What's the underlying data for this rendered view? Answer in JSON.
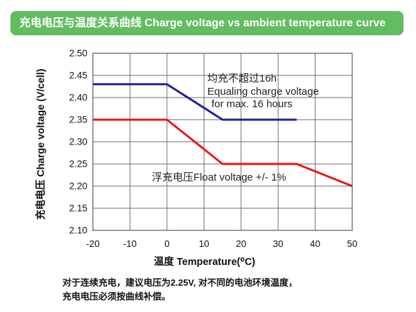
{
  "header": {
    "title": "充电电压与温度关系曲线 Charge voltage vs ambient temperature curve",
    "bg_color": "#63bc61",
    "text_color": "#ffffff"
  },
  "chart_data": {
    "type": "line",
    "title": "充电电压与温度关系曲线 Charge voltage vs ambient temperature curve",
    "xlabel": "温度 Temperature(⁰C)",
    "ylabel": "充电电压 Charge voltage (V/cell)",
    "xlim": [
      -20,
      50
    ],
    "ylim": [
      2.1,
      2.5
    ],
    "x_tick_values": [
      -20,
      -10,
      0,
      10,
      20,
      30,
      40,
      50
    ],
    "x_tick_labels": [
      "-20",
      "-10",
      "0",
      "10",
      "20",
      "30",
      "40",
      "50"
    ],
    "y_tick_values": [
      2.5,
      2.45,
      2.4,
      2.35,
      2.3,
      2.25,
      2.2,
      2.15,
      2.1
    ],
    "y_tick_labels": [
      "2.50",
      "2.45",
      "2.40",
      "2.35",
      "2.30",
      "2.25",
      "2.20",
      "2.15",
      "2.10"
    ],
    "grid": true,
    "grid_color": "#6e6e6e",
    "legend_position": "none",
    "series": [
      {
        "name": "equalizing-charge-voltage",
        "color": "#1f1f9e",
        "points": [
          [
            -20,
            2.43
          ],
          [
            0,
            2.43
          ],
          [
            15,
            2.35
          ],
          [
            35,
            2.35
          ]
        ]
      },
      {
        "name": "float-voltage",
        "color": "#ec1414",
        "points": [
          [
            -20,
            2.35
          ],
          [
            0,
            2.35
          ],
          [
            15,
            2.25
          ],
          [
            35,
            2.25
          ],
          [
            50,
            2.2
          ]
        ]
      }
    ],
    "annotations": [
      {
        "target_series": "equalizing-charge-voltage",
        "lines": [
          "均充不超过16h",
          "Equaling charge voltage",
          "for max. 16 hours"
        ]
      },
      {
        "target_series": "float-voltage",
        "lines": [
          "浮充电压Float voltage +/- 1%"
        ]
      }
    ]
  },
  "footer": {
    "line1": "对于连续充电，建议电压为2.25V, 对不同的电池环境温度，",
    "line2": "充电电压必须按曲线补偿。"
  }
}
